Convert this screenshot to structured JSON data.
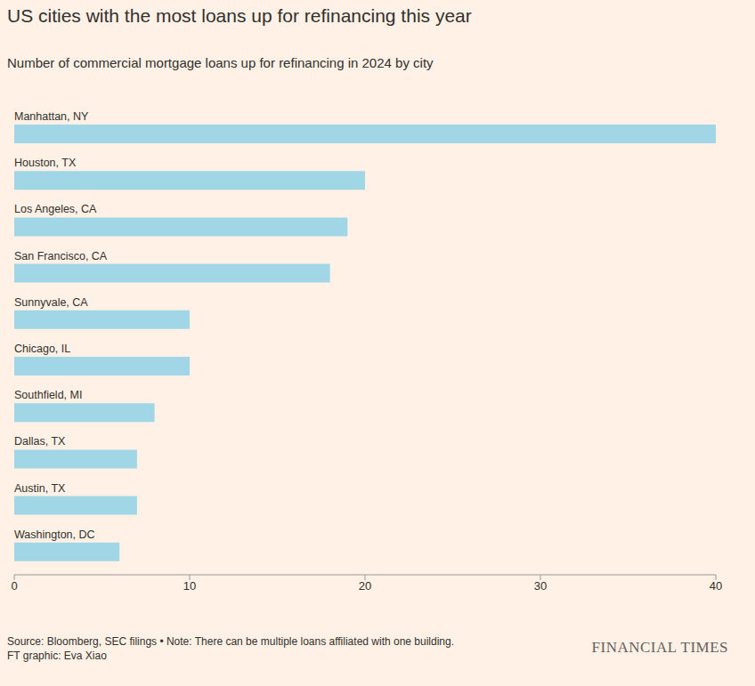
{
  "chart_data": {
    "type": "bar",
    "orientation": "horizontal",
    "title": "US cities with the most loans up for refinancing this year",
    "subtitle": "Number of commercial mortgage loans up for refinancing in 2024 by city",
    "categories": [
      "Manhattan, NY",
      "Houston, TX",
      "Los Angeles, CA",
      "San Francisco, CA",
      "Sunnyvale, CA",
      "Chicago, IL",
      "Southfield, MI",
      "Dallas, TX",
      "Austin, TX",
      "Washington, DC"
    ],
    "values": [
      40,
      20,
      19,
      18,
      10,
      10,
      8,
      7,
      7,
      6
    ],
    "color": "#a1d6e6",
    "xlim": [
      0,
      40
    ],
    "xticks": [
      0,
      10,
      20,
      30,
      40
    ],
    "grid": false,
    "source": "Source: Bloomberg, SEC filings • Note: There can be multiple loans affiliated with one building.",
    "credit": "FT graphic: Eva Xiao",
    "publisher": "FINANCIAL TIMES"
  }
}
